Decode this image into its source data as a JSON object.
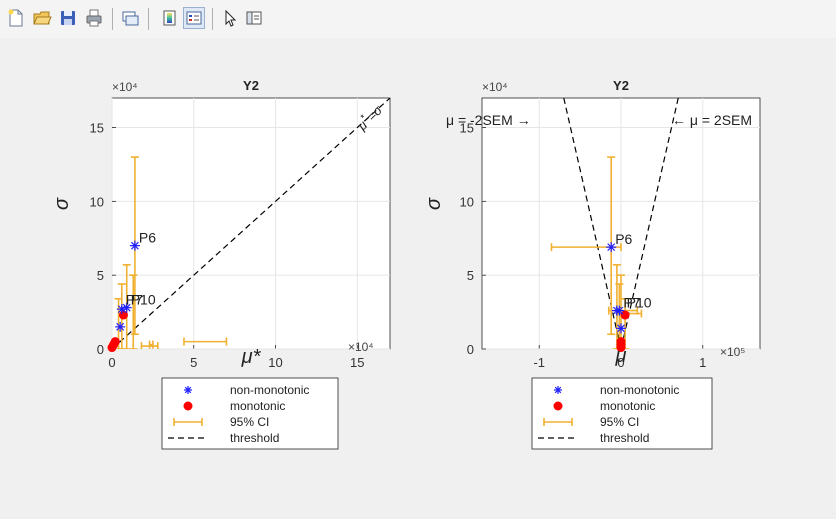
{
  "toolbar": {
    "items": [
      {
        "name": "new-figure-icon"
      },
      {
        "name": "open-folder-icon"
      },
      {
        "name": "save-icon"
      },
      {
        "name": "print-icon"
      },
      {
        "name": "link-plot-icon"
      },
      {
        "name": "colorbar-icon"
      },
      {
        "name": "legend-icon"
      },
      {
        "name": "pointer-icon"
      },
      {
        "name": "property-editor-icon"
      }
    ]
  },
  "colors": {
    "nonmono": "#1f1fff",
    "mono": "#ff0000",
    "ci": "#f0b030",
    "threshold": "#000000",
    "grid": "#e6e6e6"
  },
  "chart_data": [
    {
      "type": "scatter",
      "title": "Y2",
      "xlabel": "μ*",
      "ylabel": "σ",
      "x_multiplier": "×10⁴",
      "y_multiplier": "×10⁴",
      "xlim": [
        0,
        17
      ],
      "ylim": [
        0,
        17
      ],
      "xticks": [
        "0",
        "5",
        "10",
        "15"
      ],
      "yticks": [
        "0",
        "5",
        "10",
        "15"
      ],
      "grid": true,
      "threshold": {
        "label": "μ* = σ",
        "label_mu": "μ",
        "label_star": "*",
        "label_eq": "=σ",
        "lines": [
          [
            [
              0,
              0
            ],
            [
              17,
              17
            ]
          ]
        ]
      },
      "series": [
        {
          "name": "non-monotonic",
          "x": [
            1.4,
            0.9,
            0.6,
            0.5
          ],
          "y": [
            7.0,
            2.8,
            2.7,
            1.5
          ]
        },
        {
          "name": "monotonic",
          "x": [
            0.7,
            0.2,
            0.1,
            0.0
          ],
          "y": [
            2.3,
            0.5,
            0.3,
            0.1
          ]
        }
      ],
      "ci_x": [
        [
          0.5,
          4.4,
          7.0
        ],
        [
          0.2,
          1.8,
          2.8
        ],
        [
          0.3,
          2.5,
          2.3
        ]
      ],
      "ci_y": [
        [
          1.4,
          1.0,
          13.0
        ],
        [
          0.9,
          0.0,
          5.7
        ],
        [
          0.6,
          0.0,
          4.4
        ],
        [
          1.3,
          0.0,
          5.0
        ],
        [
          0.4,
          0.0,
          3.4
        ]
      ],
      "point_labels": [
        {
          "text": "P6",
          "x": 1.4,
          "y": 7.0
        },
        {
          "text": "P7",
          "x": 0.6,
          "y": 2.8
        },
        {
          "text": "P10",
          "x": 0.9,
          "y": 2.8
        }
      ],
      "legend": {
        "placement": "below",
        "entries": [
          "non-monotonic",
          "monotonic",
          "95% CI",
          "threshold"
        ]
      }
    },
    {
      "type": "scatter",
      "title": "Y2",
      "xlabel": "μ",
      "ylabel": "σ",
      "x_multiplier": "×10⁵",
      "y_multiplier": "×10⁴",
      "xlim": [
        -1.7,
        1.7
      ],
      "ylim": [
        0,
        17
      ],
      "xticks": [
        "-1",
        "0",
        "1"
      ],
      "yticks": [
        "0",
        "5",
        "10",
        "15"
      ],
      "grid": true,
      "threshold": {
        "label_left": "μ = -2SEM →",
        "label_right": "← μ = 2SEM",
        "lines": [
          [
            [
              -0.7,
              17
            ],
            [
              0,
              0
            ]
          ],
          [
            [
              0.7,
              17
            ],
            [
              0,
              0
            ]
          ]
        ]
      },
      "series": [
        {
          "name": "non-monotonic",
          "x": [
            -0.12,
            -0.05,
            -0.02,
            0.0
          ],
          "y": [
            6.9,
            2.6,
            2.6,
            1.4
          ]
        },
        {
          "name": "monotonic",
          "x": [
            0.05,
            0.0,
            0.0,
            0.0
          ],
          "y": [
            2.3,
            0.5,
            0.3,
            0.1
          ]
        }
      ],
      "ci_x": [
        [
          6.9,
          -0.85,
          0.0
        ],
        [
          2.6,
          -0.15,
          0.2
        ],
        [
          2.4,
          -0.05,
          0.25
        ]
      ],
      "ci_y": [
        [
          -0.12,
          1.0,
          13.0
        ],
        [
          -0.05,
          0.0,
          5.7
        ],
        [
          -0.02,
          0.0,
          4.4
        ],
        [
          0.0,
          0.0,
          5.0
        ],
        [
          0.05,
          0.0,
          3.4
        ]
      ],
      "point_labels": [
        {
          "text": "P6",
          "x": -0.12,
          "y": 6.9
        },
        {
          "text": "P7",
          "x": -0.02,
          "y": 2.6
        },
        {
          "text": "P10",
          "x": 0.02,
          "y": 2.6
        }
      ],
      "legend": {
        "placement": "below",
        "entries": [
          "non-monotonic",
          "monotonic",
          "95% CI",
          "threshold"
        ]
      }
    }
  ]
}
